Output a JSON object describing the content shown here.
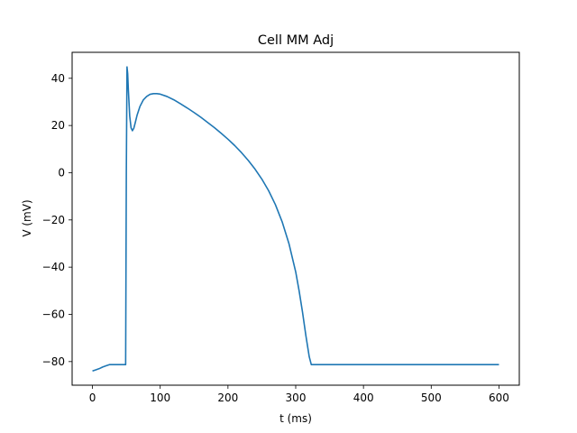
{
  "chart_data": {
    "type": "line",
    "title": "Cell MM Adj",
    "xlabel": "t (ms)",
    "ylabel": "V (mV)",
    "xlim": [
      -30,
      630
    ],
    "ylim": [
      -90,
      51
    ],
    "xticks": [
      0,
      100,
      200,
      300,
      400,
      500,
      600
    ],
    "yticks": [
      -80,
      -60,
      -40,
      -20,
      0,
      20,
      40
    ],
    "grid": false,
    "colors": {
      "line": "#1f77b4",
      "axes": "#000000",
      "background": "#ffffff"
    },
    "series": [
      {
        "x": [
          0,
          5,
          10,
          15,
          20,
          25,
          30,
          35,
          40,
          45,
          49,
          50,
          51,
          52,
          53,
          55,
          57,
          59,
          61,
          63,
          66,
          70,
          75,
          80,
          85,
          90,
          95,
          100,
          110,
          120,
          130,
          140,
          150,
          160,
          170,
          180,
          190,
          200,
          210,
          220,
          230,
          240,
          250,
          260,
          270,
          280,
          290,
          300,
          305,
          310,
          315,
          320,
          323,
          326,
          328,
          330,
          340,
          350,
          400,
          450,
          500,
          550,
          600
        ],
        "y": [
          -84,
          -83.5,
          -83,
          -82.3,
          -81.8,
          -81.3,
          -81.3,
          -81.3,
          -81.3,
          -81.3,
          -81.3,
          0,
          44.8,
          42,
          35,
          24,
          19,
          17.8,
          18.8,
          21,
          24.5,
          28,
          30.8,
          32.3,
          33.2,
          33.5,
          33.5,
          33.3,
          32.3,
          30.9,
          29.2,
          27.4,
          25.5,
          23.5,
          21.3,
          19.1,
          16.7,
          14.2,
          11.5,
          8.5,
          5.2,
          1.5,
          -2.7,
          -7.6,
          -13.5,
          -20.8,
          -30,
          -42,
          -50,
          -59,
          -69,
          -78,
          -81.3,
          -81.3,
          -81.3,
          -81.3,
          -81.3,
          -81.3,
          -81.3,
          -81.3,
          -81.3,
          -81.3,
          -81.3
        ]
      }
    ]
  }
}
